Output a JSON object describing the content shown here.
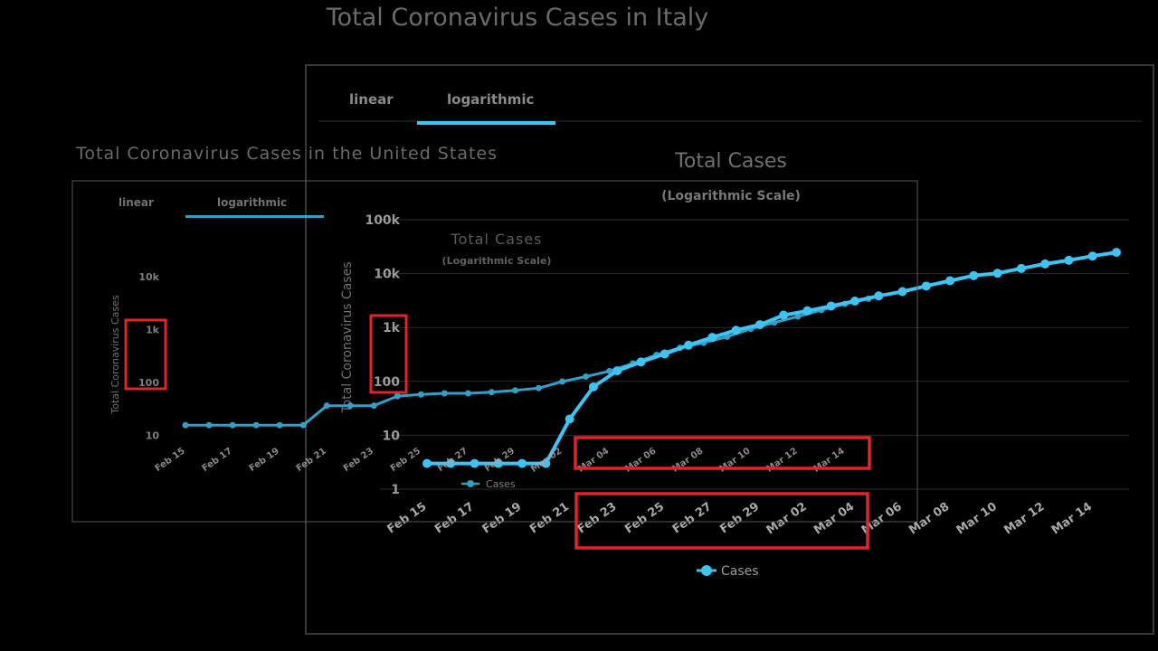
{
  "page": {
    "italy_title": "Total Coronavirus Cases in Italy",
    "us_title": "Total Coronavirus Cases in the United States"
  },
  "chart_data": [
    {
      "id": "italy",
      "type": "line",
      "title": "Total Cases",
      "subtitle": "(Logarithmic Scale)",
      "tabs": [
        "linear",
        "logarithmic"
      ],
      "active_tab": "logarithmic",
      "xlabel": "",
      "ylabel": "",
      "y_scale": "log",
      "ylim": [
        1,
        100000
      ],
      "y_ticks": [
        1,
        10,
        100,
        1000,
        10000,
        100000
      ],
      "y_tick_labels": [
        "1",
        "10",
        "100",
        "1k",
        "10k",
        "100k"
      ],
      "x_tick_labels": [
        "Feb 15",
        "Feb 17",
        "Feb 19",
        "Feb 21",
        "Feb 23",
        "Feb 25",
        "Feb 27",
        "Feb 29",
        "Mar 02",
        "Mar 04",
        "Mar 06",
        "Mar 08",
        "Mar 10",
        "Mar 12",
        "Mar 14"
      ],
      "x": [
        "Feb 15",
        "Feb 16",
        "Feb 17",
        "Feb 18",
        "Feb 19",
        "Feb 20",
        "Feb 21",
        "Feb 22",
        "Feb 23",
        "Feb 24",
        "Feb 25",
        "Feb 26",
        "Feb 27",
        "Feb 28",
        "Feb 29",
        "Mar 01",
        "Mar 02",
        "Mar 03",
        "Mar 04",
        "Mar 05",
        "Mar 06",
        "Mar 07",
        "Mar 08",
        "Mar 09",
        "Mar 10",
        "Mar 11",
        "Mar 12",
        "Mar 13",
        "Mar 14",
        "Mar 15"
      ],
      "series": [
        {
          "name": "Cases",
          "color": "#3ec3f2",
          "values": [
            3,
            3,
            3,
            3,
            3,
            3,
            20,
            79,
            157,
            229,
            323,
            470,
            655,
            889,
            1128,
            1694,
            2036,
            2502,
            3089,
            3858,
            4636,
            5883,
            7375,
            9172,
            10149,
            12462,
            15113,
            17660,
            21157,
            24747
          ]
        }
      ],
      "grid": true,
      "legend_position": "bottom"
    },
    {
      "id": "us",
      "type": "line",
      "title": "Total Cases",
      "subtitle": "(Logarithmic Scale)",
      "tabs": [
        "linear",
        "logarithmic"
      ],
      "active_tab": "logarithmic",
      "xlabel": "",
      "ylabel": "Total Coronavirus Cases",
      "y_scale": "log",
      "ylim": [
        10,
        10000
      ],
      "y_ticks": [
        10,
        100,
        1000,
        10000
      ],
      "y_tick_labels": [
        "10",
        "100",
        "1k",
        "10k"
      ],
      "x_tick_labels": [
        "Feb 15",
        "Feb 17",
        "Feb 19",
        "Feb 21",
        "Feb 23",
        "Feb 25",
        "Feb 27",
        "Feb 29",
        "Mar 02",
        "Mar 04",
        "Mar 06",
        "Mar 08",
        "Mar 10",
        "Mar 12",
        "Mar 14"
      ],
      "x": [
        "Feb 15",
        "Feb 16",
        "Feb 17",
        "Feb 18",
        "Feb 19",
        "Feb 20",
        "Feb 21",
        "Feb 22",
        "Feb 23",
        "Feb 24",
        "Feb 25",
        "Feb 26",
        "Feb 27",
        "Feb 28",
        "Feb 29",
        "Mar 01",
        "Mar 02",
        "Mar 03",
        "Mar 04",
        "Mar 05",
        "Mar 06",
        "Mar 07",
        "Mar 08",
        "Mar 09",
        "Mar 10",
        "Mar 11",
        "Mar 12",
        "Mar 13",
        "Mar 14",
        "Mar 15"
      ],
      "series": [
        {
          "name": "Cases",
          "color": "#3ec3f2",
          "values": [
            15,
            15,
            15,
            15,
            15,
            15,
            35,
            35,
            35,
            53,
            57,
            60,
            60,
            63,
            68,
            75,
            100,
            124,
            158,
            221,
            319,
            435,
            541,
            704,
            994,
            1301,
            1697,
            2247,
            2943,
            3680
          ]
        }
      ],
      "grid": false,
      "legend_position": "bottom"
    }
  ]
}
